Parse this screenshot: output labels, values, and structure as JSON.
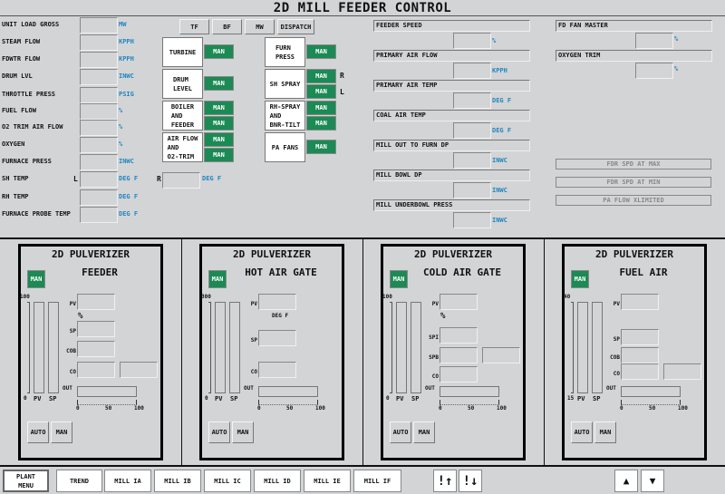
{
  "title": "2D MILL FEEDER CONTROL",
  "process_values": [
    {
      "label": "UNIT LOAD GROSS",
      "unit": "MW"
    },
    {
      "label": "STEAM FLOW",
      "unit": "KPPH"
    },
    {
      "label": "FDWTR FLOW",
      "unit": "KPPH"
    },
    {
      "label": "DRUM LVL",
      "unit": "INWC"
    },
    {
      "label": "THROTTLE PRESS",
      "unit": "PSIG"
    },
    {
      "label": "FUEL FLOW",
      "unit": "%"
    },
    {
      "label": "O2 TRIM AIR FLOW",
      "unit": "%"
    },
    {
      "label": "OXYGEN",
      "unit": "%"
    },
    {
      "label": "FURNACE PRESS",
      "unit": "INWC"
    },
    {
      "label": "SH TEMP",
      "unit": "DEG F",
      "side": "L"
    },
    {
      "label": "RH TEMP",
      "unit": "DEG F"
    },
    {
      "label": "FURNACE PROBE TEMP",
      "unit": "DEG F"
    }
  ],
  "sh_temp_r": {
    "side": "R",
    "unit": "DEG F"
  },
  "mode_buttons": [
    "TF",
    "BF",
    "MW",
    "DISPATCH"
  ],
  "loops_left": [
    {
      "label": "TURBINE",
      "modes": [
        "MAN"
      ]
    },
    {
      "label": "DRUM\nLEVEL",
      "modes": [
        "MAN"
      ]
    },
    {
      "label": "BOILER\nAND\nFEEDER",
      "modes": [
        "MAN",
        "MAN"
      ]
    },
    {
      "label": "AIR FLOW\nAND\nO2-TRIM",
      "modes": [
        "MAN",
        "MAN"
      ]
    }
  ],
  "loops_right": [
    {
      "label": "FURN\nPRESS",
      "modes": [
        "MAN"
      ]
    },
    {
      "label": "SH SPRAY",
      "modes": [
        "MAN",
        "MAN"
      ],
      "sides": [
        "R",
        "L"
      ]
    },
    {
      "label": "RH-SPRAY\nAND\nBNR-TILT",
      "modes": [
        "MAN",
        "MAN"
      ]
    },
    {
      "label": "PA FANS",
      "modes": [
        "MAN"
      ]
    }
  ],
  "mill_values": [
    {
      "label": "FEEDER SPEED",
      "unit": "%"
    },
    {
      "label": "PRIMARY AIR FLOW",
      "unit": "KPPH"
    },
    {
      "label": "PRIMARY AIR TEMP",
      "unit": "DEG F"
    },
    {
      "label": "COAL AIR TEMP",
      "unit": "DEG F"
    },
    {
      "label": "MILL OUT TO FURN DP",
      "unit": "INWC"
    },
    {
      "label": "MILL BOWL DP",
      "unit": "INWC"
    },
    {
      "label": "MILL UNDERBOWL PRESS",
      "unit": "INWC"
    }
  ],
  "fan_values": [
    {
      "label": "FD FAN MASTER",
      "unit": "%"
    },
    {
      "label": "OXYGEN TRIM",
      "unit": "%"
    }
  ],
  "status_indicators": [
    "FDR SPD AT MAX",
    "FDR SPD AT MIN",
    "PA FLOW XLIMITED"
  ],
  "panels": [
    {
      "title1": "2D PULVERIZER",
      "title2": "FEEDER",
      "mode": "MAN",
      "scale_max": "100",
      "scale_min": "0",
      "unit": "%",
      "fields": [
        "PV",
        "SP",
        "COB",
        "CO"
      ],
      "extra_box": "CO"
    },
    {
      "title1": "2D PULVERIZER",
      "title2": "HOT AIR GATE",
      "mode": "MAN",
      "scale_max": "300",
      "scale_min": "0",
      "unit": "DEG F",
      "fields": [
        "PV",
        "SP",
        "CO"
      ]
    },
    {
      "title1": "2D PULVERIZER",
      "title2": "COLD AIR GATE",
      "mode": "MAN",
      "scale_max": "100",
      "scale_min": "0",
      "unit": "%",
      "fields": [
        "PV",
        "SPI",
        "SPB",
        "CO"
      ],
      "extra_box": "SPB"
    },
    {
      "title1": "2D PULVERIZER",
      "title2": "FUEL AIR",
      "mode": "MAN",
      "scale_max": "40",
      "scale_min": "15",
      "unit": "",
      "fields": [
        "PV",
        "SP",
        "COB",
        "CO"
      ],
      "extra_box": "CO"
    }
  ],
  "panel_common": {
    "bar_labels": [
      "PV",
      "SP"
    ],
    "out_label": "OUT",
    "out_scale": [
      "0",
      "50",
      "100"
    ],
    "auto": "AUTO",
    "man": "MAN"
  },
  "nav": {
    "plant_menu": "PLANT\nMENU",
    "buttons": [
      "TREND",
      "MILL IA",
      "MILL IB",
      "MILL IC",
      "MILL ID",
      "MILL IE",
      "MILL IF"
    ],
    "alarm_up": "!↑",
    "alarm_down": "!↓",
    "page_up": "▲",
    "page_down": "▼"
  },
  "colors": {
    "man_green": "#1b8a55",
    "unit_blue": "#1f86c0",
    "background": "#d3d4d6"
  }
}
